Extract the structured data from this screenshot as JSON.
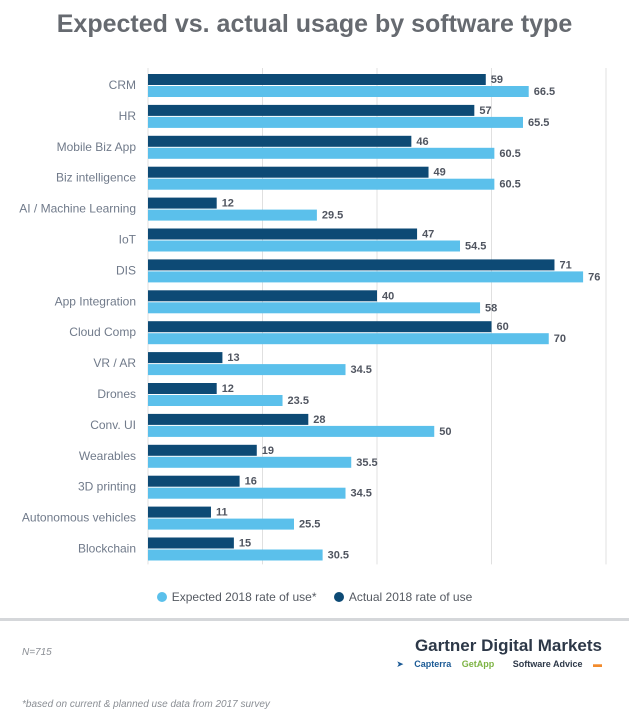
{
  "title": "Expected vs. actual usage by software type",
  "colors": {
    "expected": "#5bc0eb",
    "actual": "#0d4a75",
    "grid": "#e0e0e0"
  },
  "legend": {
    "expected": "Expected 2018 rate of use*",
    "actual": "Actual 2018 rate of use"
  },
  "sample": "N=715",
  "footnote": "*based on current & planned use data from 2017 survey",
  "brand": {
    "name": "Gartner Digital Markets",
    "capterra": "Capterra",
    "getapp": "GetApp",
    "software_advice": "Software Advice"
  },
  "chart_data": {
    "type": "bar",
    "orientation": "horizontal",
    "title": "Expected vs. actual usage by software type",
    "categories": [
      "CRM",
      "HR",
      "Mobile Biz App",
      "Biz intelligence",
      "AI / Machine Learning",
      "IoT",
      "DIS",
      "App Integration",
      "Cloud Comp",
      "VR / AR",
      "Drones",
      "Conv. UI",
      "Wearables",
      "3D printing",
      "Autonomous vehicles",
      "Blockchain"
    ],
    "series": [
      {
        "name": "Actual 2018 rate of use",
        "values": [
          59,
          57,
          46,
          49,
          12,
          47,
          71,
          40,
          60,
          13,
          12,
          28,
          19,
          16,
          11,
          15
        ]
      },
      {
        "name": "Expected 2018 rate of use*",
        "values": [
          66.5,
          65.5,
          60.5,
          60.5,
          29.5,
          54.5,
          76,
          58,
          70,
          34.5,
          23.5,
          50,
          35.5,
          34.5,
          25.5,
          30.5
        ]
      }
    ],
    "value_labels": {
      "actual": [
        "59",
        "57",
        "46",
        "49",
        "12",
        "47",
        "71",
        "40",
        "60",
        "13",
        "12",
        "28",
        "19",
        "16",
        "11",
        "15"
      ],
      "expected": [
        "66.5",
        "65.5",
        "60.5",
        "60.5",
        "29.5",
        "54.5",
        "76",
        "58",
        "70",
        "34.5",
        "23.5",
        "50",
        "35.5",
        "34.5",
        "25.5",
        "30.5"
      ]
    },
    "xlim": [
      0,
      80
    ],
    "gridlines": [
      0,
      20,
      40,
      60,
      80
    ],
    "legend_position": "bottom",
    "xlabel": "",
    "ylabel": ""
  }
}
